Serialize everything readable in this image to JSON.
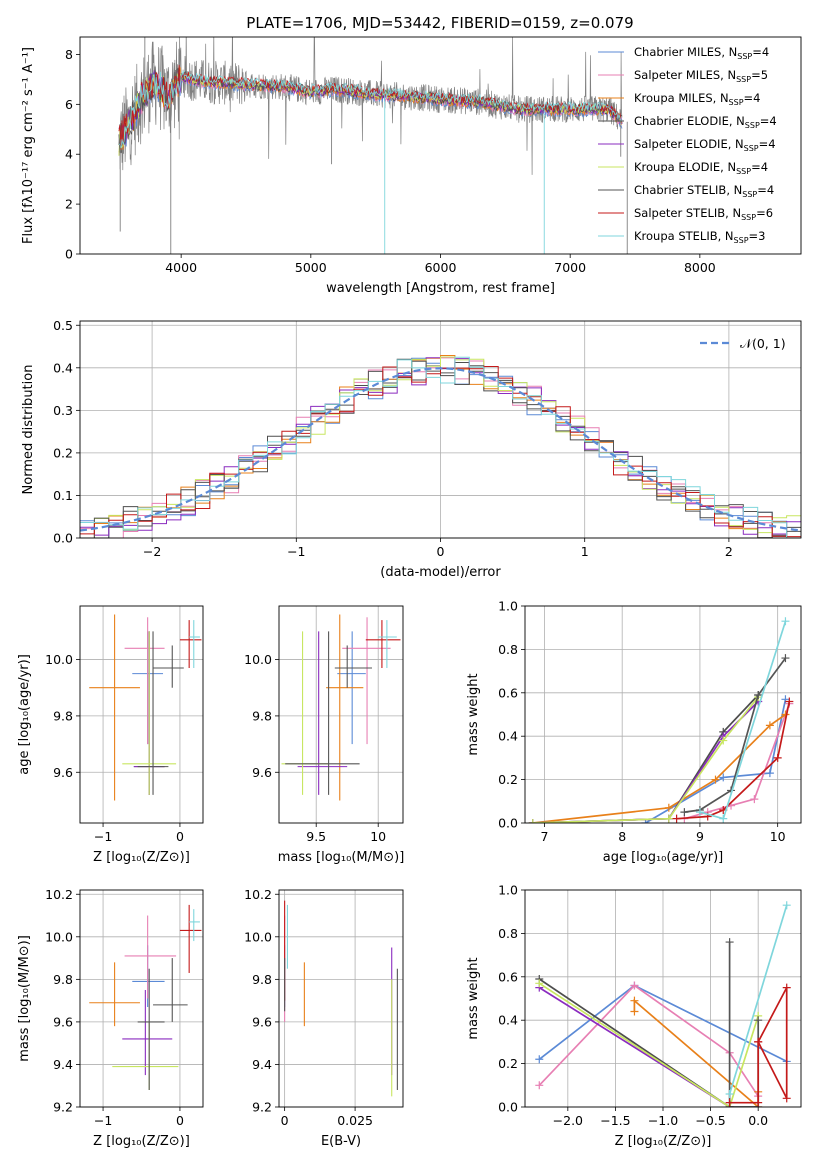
{
  "figure_title": "PLATE=1706, MJD=53442, FIBERID=0159, z=0.079",
  "colors": {
    "Chabrier MILES": "#5b8ad6",
    "Salpeter MILES": "#e77fb3",
    "Kroupa MILES": "#e8801a",
    "Chabrier ELODIE": "#4d4d4d",
    "Salpeter ELODIE": "#8a2bbf",
    "Kroupa ELODIE": "#c8e660",
    "Chabrier STELIB": "#555555",
    "Salpeter STELIB": "#c41a1a",
    "Kroupa STELIB": "#7fd6dc",
    "ELODIE_green": "#66bb3a",
    "data": "#808080"
  },
  "chart_data": [
    {
      "id": "spectrum",
      "type": "line",
      "title": "PLATE=1706, MJD=53442, FIBERID=0159, z=0.079",
      "xlabel": "wavelength [Angstrom, rest frame]",
      "ylabel": "Flux [fλ10⁻¹⁷ erg cm⁻² s⁻¹ A⁻¹]",
      "xlim": [
        3220,
        8780
      ],
      "ylim": [
        0,
        8.7
      ],
      "xticks": [
        4000,
        5000,
        6000,
        7000,
        8000
      ],
      "yticks": [
        0,
        2,
        4,
        6,
        8
      ],
      "legend_position": "top-right",
      "legend": [
        "Chabrier MILES, N_SSP=4",
        "Salpeter MILES, N_SSP=5",
        "Kroupa MILES, N_SSP=4",
        "Chabrier ELODIE, N_SSP=4",
        "Salpeter ELODIE, N_SSP=4",
        "Kroupa ELODIE, N_SSP=4",
        "Chabrier STELIB, N_SSP=4",
        "Salpeter STELIB, N_SSP=6",
        "Kroupa STELIB, N_SSP=3"
      ],
      "continuum": [
        [
          3520,
          4.5
        ],
        [
          3600,
          5.2
        ],
        [
          3700,
          6.3
        ],
        [
          3800,
          6.9
        ],
        [
          3900,
          6.3
        ],
        [
          4000,
          7.1
        ],
        [
          4100,
          7.0
        ],
        [
          4200,
          6.9
        ],
        [
          4500,
          6.8
        ],
        [
          4800,
          6.7
        ],
        [
          5000,
          6.5
        ],
        [
          5200,
          6.6
        ],
        [
          5500,
          6.4
        ],
        [
          5800,
          6.3
        ],
        [
          6000,
          6.2
        ],
        [
          6300,
          6.1
        ],
        [
          6600,
          5.8
        ],
        [
          7000,
          5.8
        ],
        [
          7300,
          5.8
        ],
        [
          7400,
          5.3
        ]
      ],
      "spikes": [
        [
          3920,
          0.0
        ],
        [
          3720,
          8.7
        ],
        [
          5160,
          3.6
        ],
        [
          5570,
          0.0
        ],
        [
          6800,
          0.0
        ],
        [
          7440,
          0.0
        ],
        [
          3530,
          0.9
        ],
        [
          7390,
          3.9
        ]
      ]
    },
    {
      "id": "residuals",
      "type": "line",
      "xlabel": "(data-model)/error",
      "ylabel": "Normed distribution",
      "xlim": [
        -2.5,
        2.5
      ],
      "ylim": [
        0,
        0.51
      ],
      "xticks": [
        -2,
        -1,
        0,
        1,
        2
      ],
      "yticks": [
        0.0,
        0.1,
        0.2,
        0.3,
        0.4,
        0.5
      ],
      "gaussian_label": "𝒩(0, 1)",
      "bin_width": 0.1
    },
    {
      "id": "age_vs_Z",
      "type": "scatter",
      "xlabel": "Z [log₁₀(Z/Z⊙)]",
      "ylabel": "age  [log₁₀(age/yr)]",
      "xlim": [
        -1.3,
        0.3
      ],
      "ylim": [
        9.42,
        10.19
      ],
      "xticks": [
        -1,
        0
      ],
      "yticks": [
        9.6,
        9.8,
        10.0
      ],
      "points": [
        {
          "model": "Chabrier MILES",
          "x": -0.42,
          "xlo": -0.62,
          "xhi": -0.22,
          "y": 9.95,
          "ylo": 9.7,
          "yhi": 10.1
        },
        {
          "model": "Salpeter MILES",
          "x": -0.42,
          "xlo": -0.72,
          "xhi": -0.2,
          "y": 10.04,
          "ylo": 9.7,
          "yhi": 10.15
        },
        {
          "model": "Kroupa MILES",
          "x": -0.85,
          "xlo": -1.18,
          "xhi": -0.52,
          "y": 9.9,
          "ylo": 9.5,
          "yhi": 10.16
        },
        {
          "model": "Chabrier ELODIE",
          "x": -0.4,
          "xlo": -0.6,
          "xhi": -0.2,
          "y": 9.62,
          "ylo": 9.52,
          "yhi": 10.1
        },
        {
          "model": "Salpeter ELODIE",
          "x": -0.4,
          "xlo": -0.6,
          "xhi": -0.2,
          "y": 9.62,
          "ylo": 9.52,
          "yhi": 10.1
        },
        {
          "model": "Kroupa ELODIE",
          "x": -0.4,
          "xlo": -0.75,
          "xhi": -0.05,
          "y": 9.63,
          "ylo": 9.52,
          "yhi": 10.1
        },
        {
          "model": "Chabrier STELIB",
          "x": -0.35,
          "xlo": -0.55,
          "xhi": -0.15,
          "y": 9.62,
          "ylo": 9.52,
          "yhi": 10.1
        },
        {
          "model": "Salpeter STELIB",
          "x": 0.12,
          "xlo": 0.0,
          "xhi": 0.28,
          "y": 10.07,
          "ylo": 9.97,
          "yhi": 10.14
        },
        {
          "model": "Kroupa STELIB",
          "x": 0.18,
          "xlo": 0.12,
          "xhi": 0.26,
          "y": 10.08,
          "ylo": 9.97,
          "yhi": 10.14
        },
        {
          "model": "Chabrier STELIB",
          "x": -0.1,
          "xlo": -0.35,
          "xhi": 0.05,
          "y": 9.97,
          "ylo": 9.9,
          "yhi": 10.05
        }
      ]
    },
    {
      "id": "age_vs_mass",
      "type": "scatter",
      "xlabel": "mass [log₁₀(M/M⊙)]",
      "ylabel": "",
      "xlim": [
        9.2,
        10.2
      ],
      "ylim": [
        9.42,
        10.19
      ],
      "xticks": [
        9.5,
        10.0
      ],
      "yticks": [
        9.6,
        9.8,
        10.0
      ],
      "points": [
        {
          "model": "Chabrier MILES",
          "x": 9.79,
          "xlo": 9.67,
          "xhi": 9.9,
          "y": 9.95,
          "ylo": 9.7,
          "yhi": 10.1
        },
        {
          "model": "Salpeter MILES",
          "x": 9.91,
          "xlo": 9.71,
          "xhi": 10.1,
          "y": 10.04,
          "ylo": 9.7,
          "yhi": 10.15
        },
        {
          "model": "Kroupa MILES",
          "x": 9.69,
          "xlo": 9.58,
          "xhi": 9.88,
          "y": 9.9,
          "ylo": 9.5,
          "yhi": 10.16
        },
        {
          "model": "Salpeter ELODIE",
          "x": 9.52,
          "xlo": 9.35,
          "xhi": 9.75,
          "y": 9.62,
          "ylo": 9.52,
          "yhi": 10.1
        },
        {
          "model": "Kroupa ELODIE",
          "x": 9.39,
          "xlo": 9.22,
          "xhi": 9.6,
          "y": 9.63,
          "ylo": 9.52,
          "yhi": 10.1
        },
        {
          "model": "Chabrier STELIB",
          "x": 9.6,
          "xlo": 9.25,
          "xhi": 9.85,
          "y": 9.63,
          "ylo": 9.52,
          "yhi": 10.1
        },
        {
          "model": "Salpeter STELIB",
          "x": 10.03,
          "xlo": 9.9,
          "xhi": 10.18,
          "y": 10.07,
          "ylo": 9.97,
          "yhi": 10.14
        },
        {
          "model": "Kroupa STELIB",
          "x": 10.07,
          "xlo": 10.0,
          "xhi": 10.15,
          "y": 10.08,
          "ylo": 9.97,
          "yhi": 10.14
        },
        {
          "model": "Chabrier STELIB",
          "x": 9.75,
          "xlo": 9.65,
          "xhi": 9.95,
          "y": 9.97,
          "ylo": 9.9,
          "yhi": 10.05
        }
      ]
    },
    {
      "id": "mass_weight_vs_age",
      "type": "line",
      "xlabel": "age  [log₁₀(age/yr)]",
      "ylabel": "mass weight",
      "xlim": [
        6.75,
        10.3
      ],
      "ylim": [
        0,
        1.0
      ],
      "xticks": [
        7,
        8,
        9,
        10
      ],
      "yticks": [
        0.0,
        0.2,
        0.4,
        0.6,
        0.8,
        1.0
      ],
      "series": [
        {
          "model": "Chabrier MILES",
          "x": [
            8.3,
            9.3,
            9.9,
            10.1
          ],
          "y": [
            0.0,
            0.21,
            0.23,
            0.57
          ]
        },
        {
          "model": "Salpeter MILES",
          "x": [
            8.8,
            9.1,
            9.4,
            9.7,
            10.15
          ],
          "y": [
            0.02,
            0.05,
            0.08,
            0.11,
            0.55
          ]
        },
        {
          "model": "Kroupa MILES",
          "x": [
            6.85,
            8.6,
            9.2,
            9.9,
            10.1
          ],
          "y": [
            0.0,
            0.07,
            0.2,
            0.45,
            0.5
          ]
        },
        {
          "model": "Chabrier ELODIE",
          "x": [
            6.85,
            8.6,
            9.3,
            9.75
          ],
          "y": [
            0.0,
            0.02,
            0.42,
            0.59
          ]
        },
        {
          "model": "Salpeter ELODIE",
          "x": [
            6.85,
            8.6,
            9.3,
            9.75
          ],
          "y": [
            0.0,
            0.02,
            0.4,
            0.56
          ]
        },
        {
          "model": "Kroupa ELODIE",
          "x": [
            6.85,
            8.6,
            9.3,
            9.75
          ],
          "y": [
            0.0,
            0.02,
            0.38,
            0.58
          ]
        },
        {
          "model": "Chabrier STELIB",
          "x": [
            8.8,
            9.0,
            9.4,
            9.75,
            10.1
          ],
          "y": [
            0.05,
            0.06,
            0.15,
            0.59,
            0.76
          ]
        },
        {
          "model": "Salpeter STELIB",
          "x": [
            8.7,
            9.1,
            9.3,
            10.0,
            10.15
          ],
          "y": [
            0.02,
            0.03,
            0.06,
            0.3,
            0.56
          ]
        },
        {
          "model": "Kroupa STELIB",
          "x": [
            9.0,
            9.3,
            10.1
          ],
          "y": [
            0.05,
            0.02,
            0.93
          ]
        }
      ]
    },
    {
      "id": "mass_vs_Z",
      "type": "scatter",
      "xlabel": "Z [log₁₀(Z/Z⊙)]",
      "ylabel": "mass [log₁₀(M/M⊙)]",
      "xlim": [
        -1.3,
        0.3
      ],
      "ylim": [
        9.2,
        10.22
      ],
      "xticks": [
        -1,
        0
      ],
      "yticks": [
        9.2,
        9.4,
        9.6,
        9.8,
        10.0,
        10.2
      ],
      "points": [
        {
          "model": "Chabrier MILES",
          "x": -0.42,
          "xlo": -0.62,
          "xhi": -0.2,
          "y": 9.79,
          "ylo": 9.67,
          "yhi": 9.96
        },
        {
          "model": "Salpeter MILES",
          "x": -0.42,
          "xlo": -0.72,
          "xhi": -0.05,
          "y": 9.91,
          "ylo": 9.71,
          "yhi": 10.1
        },
        {
          "model": "Kroupa MILES",
          "x": -0.85,
          "xlo": -1.18,
          "xhi": -0.52,
          "y": 9.69,
          "ylo": 9.58,
          "yhi": 9.88
        },
        {
          "model": "Salpeter ELODIE",
          "x": -0.45,
          "xlo": -0.75,
          "xhi": -0.1,
          "y": 9.52,
          "ylo": 9.35,
          "yhi": 9.75
        },
        {
          "model": "Kroupa ELODIE",
          "x": -0.4,
          "xlo": -0.88,
          "xhi": -0.02,
          "y": 9.39,
          "ylo": 9.28,
          "yhi": 9.6
        },
        {
          "model": "Chabrier STELIB",
          "x": -0.4,
          "xlo": -0.55,
          "xhi": -0.2,
          "y": 9.6,
          "ylo": 9.28,
          "yhi": 9.85
        },
        {
          "model": "Salpeter STELIB",
          "x": 0.12,
          "xlo": 0.0,
          "xhi": 0.28,
          "y": 10.03,
          "ylo": 9.83,
          "yhi": 10.15
        },
        {
          "model": "Kroupa STELIB",
          "x": 0.18,
          "xlo": 0.12,
          "xhi": 0.26,
          "y": 10.07,
          "ylo": 9.98,
          "yhi": 10.13
        },
        {
          "model": "Chabrier STELIB",
          "x": -0.1,
          "xlo": -0.35,
          "xhi": 0.1,
          "y": 9.68,
          "ylo": 9.6,
          "yhi": 9.9
        }
      ]
    },
    {
      "id": "mass_vs_ebv",
      "type": "scatter",
      "xlabel": "E(B-V)",
      "ylabel": "",
      "xlim": [
        -0.002,
        0.042
      ],
      "ylim": [
        9.2,
        10.22
      ],
      "xticks": [
        0.0,
        0.025
      ],
      "yticks": [
        9.2,
        9.4,
        9.6,
        9.8,
        10.0,
        10.2
      ],
      "points": [
        {
          "model": "Chabrier MILES",
          "x": 0.0,
          "y": 9.79,
          "ylo": 9.67,
          "yhi": 9.96
        },
        {
          "model": "Salpeter MILES",
          "x": 0.0,
          "y": 9.91,
          "ylo": 9.6,
          "yhi": 10.1
        },
        {
          "model": "Kroupa MILES",
          "x": 0.007,
          "y": 9.69,
          "ylo": 9.58,
          "yhi": 9.88
        },
        {
          "model": "Salpeter ELODIE",
          "x": 0.038,
          "y": 9.52,
          "ylo": 9.35,
          "yhi": 9.95
        },
        {
          "model": "Kroupa ELODIE",
          "x": 0.038,
          "y": 9.39,
          "ylo": 9.25,
          "yhi": 9.8
        },
        {
          "model": "Chabrier STELIB",
          "x": 0.04,
          "y": 9.6,
          "ylo": 9.28,
          "yhi": 9.85
        },
        {
          "model": "Salpeter STELIB",
          "x": 0.0,
          "y": 10.03,
          "ylo": 9.7,
          "yhi": 10.17
        },
        {
          "model": "Kroupa STELIB",
          "x": 0.001,
          "y": 10.07,
          "ylo": 9.85,
          "yhi": 10.15
        },
        {
          "model": "Chabrier STELIB",
          "x": 0.0,
          "y": 9.68,
          "ylo": 9.65,
          "yhi": 9.9
        }
      ]
    },
    {
      "id": "mass_weight_vs_Z",
      "type": "line",
      "xlabel": "Z [log₁₀(Z/Z⊙)]",
      "ylabel": "mass weight",
      "xlim": [
        -2.45,
        0.45
      ],
      "ylim": [
        0,
        1.0
      ],
      "xticks": [
        -2.0,
        -1.5,
        -1.0,
        -0.5,
        0.0
      ],
      "yticks": [
        0.0,
        0.2,
        0.4,
        0.6,
        0.8,
        1.0
      ],
      "series": [
        {
          "model": "Chabrier MILES",
          "x": [
            -2.3,
            -1.3,
            0.3
          ],
          "y": [
            0.22,
            0.56,
            0.21
          ]
        },
        {
          "model": "Salpeter MILES",
          "x": [
            -2.3,
            -1.3,
            -0.3,
            0.0
          ],
          "y": [
            0.1,
            0.56,
            0.25,
            0.05
          ]
        },
        {
          "model": "Kroupa MILES",
          "x": [
            -1.3,
            -1.3,
            0.0,
            0.0
          ],
          "y": [
            0.44,
            0.49,
            0.0,
            0.07
          ]
        },
        {
          "model": "Chabrier ELODIE",
          "x": [
            -2.3,
            -0.3
          ],
          "y": [
            0.59,
            0.0
          ]
        },
        {
          "model": "Salpeter ELODIE",
          "x": [
            -2.3,
            -0.3
          ],
          "y": [
            0.55,
            0.0
          ]
        },
        {
          "model": "Kroupa ELODIE",
          "x": [
            -2.3,
            -0.3,
            0.0
          ],
          "y": [
            0.57,
            0.0,
            0.42
          ]
        },
        {
          "model": "Chabrier STELIB",
          "x": [
            -0.3,
            -0.3,
            0.0,
            0.0
          ],
          "y": [
            0.76,
            0.0,
            0.0,
            0.4
          ]
        },
        {
          "model": "Salpeter STELIB",
          "x": [
            -0.3,
            0.0,
            0.0,
            0.3,
            0.3,
            0.0
          ],
          "y": [
            0.02,
            0.02,
            0.3,
            0.55,
            0.04,
            0.3
          ]
        },
        {
          "model": "Kroupa STELIB",
          "x": [
            -0.3,
            0.3
          ],
          "y": [
            0.06,
            0.93
          ]
        }
      ]
    }
  ]
}
